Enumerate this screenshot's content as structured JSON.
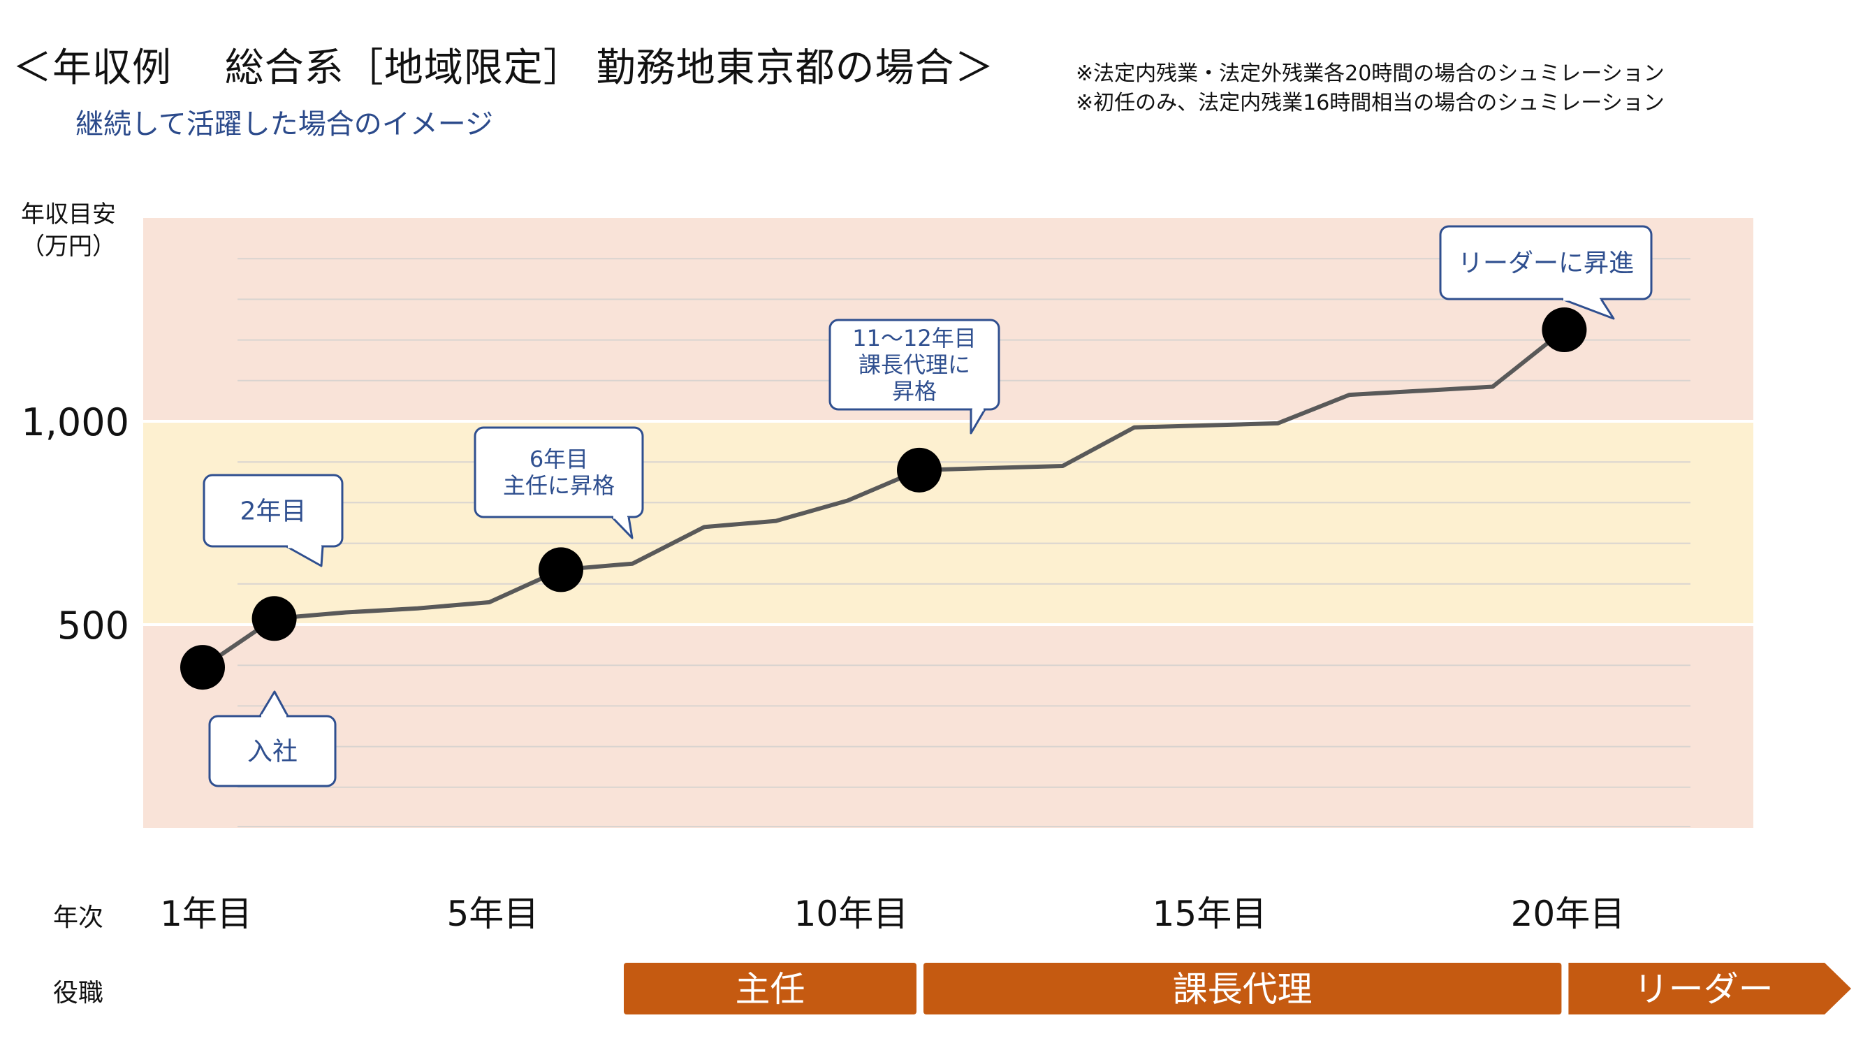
{
  "header": {
    "title": "＜年収例　 総合系［地域限定］ 勤務地東京都の場合＞",
    "subtitle": "継続して活躍した場合のイメージ",
    "notes": [
      "※法定内残業・法定外残業各20時間の場合のシュミレーション",
      "※初任のみ、法定内残業16時間相当の場合のシュミレーション"
    ]
  },
  "axis": {
    "ylabel_line1": "年収目安",
    "ylabel_line2": "（万円）",
    "row_year_label": "年次",
    "row_role_label": "役職"
  },
  "chart_data": {
    "type": "line",
    "ylabel": "年収目安（万円）",
    "ylim": [
      0,
      1500
    ],
    "yticks": [
      500,
      1000
    ],
    "ytick_labels": [
      "500",
      "1,000"
    ],
    "xlim": [
      0,
      21
    ],
    "xticks": [
      1,
      5,
      10,
      15,
      20
    ],
    "xtick_labels": [
      "1年目",
      "5年目",
      "10年目",
      "15年目",
      "20年目"
    ],
    "bands": [
      {
        "from": 0,
        "to": 500,
        "color": "#f9e3d8"
      },
      {
        "from": 500,
        "to": 1000,
        "color": "#fdf0d0"
      },
      {
        "from": 1000,
        "to": 1500,
        "color": "#f9e3d8"
      }
    ],
    "series": [
      {
        "x": [
          1,
          2,
          3,
          4,
          5,
          6,
          7,
          8,
          9,
          10,
          11,
          12,
          13,
          14,
          15,
          16,
          17,
          18,
          19,
          20,
          21
        ],
        "y": [
          395,
          515,
          530,
          540,
          555,
          635,
          650,
          740,
          755,
          805,
          880,
          885,
          890,
          985,
          990,
          995,
          1065,
          1075,
          1085,
          1225,
          null
        ]
      }
    ],
    "highlighted_points": [
      {
        "x": 1,
        "y": 395,
        "label": "入社"
      },
      {
        "x": 2,
        "y": 515,
        "label": "2年目"
      },
      {
        "x": 6,
        "y": 635,
        "label": "6年目\n主任に昇格"
      },
      {
        "x": 11,
        "y": 880,
        "label": "11～12年目\n課長代理に\n昇格"
      },
      {
        "x": 20,
        "y": 1225,
        "label": "リーダーに昇進"
      }
    ],
    "roles": [
      {
        "label": "主任",
        "from": 6,
        "to": 11
      },
      {
        "label": "課長代理",
        "from": 11,
        "to": 20
      },
      {
        "label": "リーダー",
        "from": 20,
        "to": 21
      }
    ],
    "colors": {
      "line": "#595959",
      "marker": "#000000",
      "role_bar": "#c55a11",
      "callout_border": "#2f4f8f",
      "callout_text": "#2f4f8f"
    }
  }
}
